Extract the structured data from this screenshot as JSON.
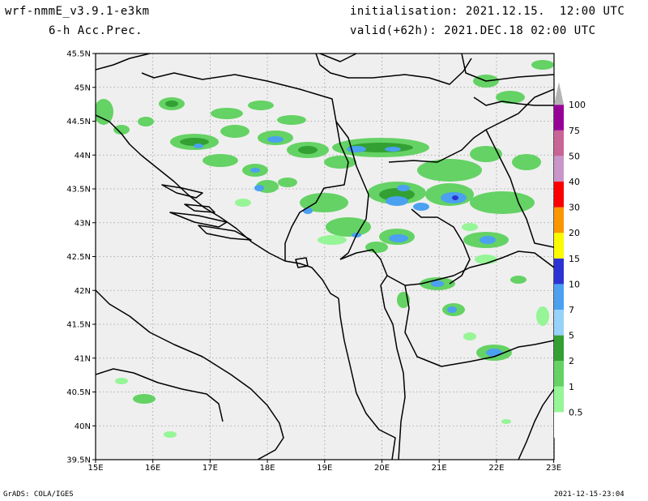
{
  "header": {
    "model": "wrf-nmmE_v3.9.1-e3km",
    "field": "6-h Acc.Prec.",
    "init": "initialisation: 2021.12.15.  12:00 UTC",
    "valid": "valid(+62h): 2021.DEC.18 02:00 UTC"
  },
  "footer": {
    "credit": "GrADS: COLA/IGES",
    "timestamp": "2021-12-15-23:04"
  },
  "map": {
    "lat_labels": [
      "45.5N",
      "45N",
      "44.5N",
      "44N",
      "43.5N",
      "43N",
      "42.5N",
      "42N",
      "41.5N",
      "41N",
      "40.5N",
      "40N",
      "39.5N"
    ],
    "lon_labels": [
      "15E",
      "16E",
      "17E",
      "18E",
      "19E",
      "20E",
      "21E",
      "22E",
      "23E"
    ],
    "background_color": "#efefef",
    "border_color": "#000000"
  },
  "colorbar": {
    "labels": [
      "0.5",
      "1",
      "2",
      "5",
      "7",
      "10",
      "15",
      "20",
      "30",
      "40",
      "50",
      "75",
      "100"
    ],
    "colors": [
      "#ffffff",
      "#96f596",
      "#64d264",
      "#32a032",
      "#96d2fa",
      "#4ba0f0",
      "#2d32d2",
      "#fafa00",
      "#fa9600",
      "#fa0000",
      "#c896c8",
      "#c86496",
      "#960096",
      "#b4b4b4"
    ]
  }
}
